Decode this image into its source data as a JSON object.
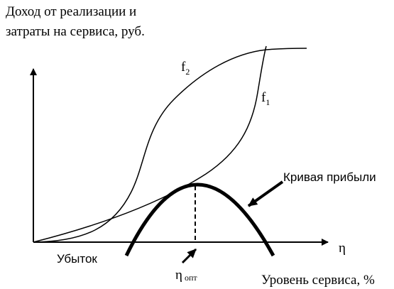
{
  "y_axis_label": [
    "Доход от реализации и",
    "затраты на сервиса, руб."
  ],
  "curves": {
    "f2": {
      "base": "f",
      "sub": "2"
    },
    "f1": {
      "base": "f",
      "sub": "1"
    },
    "profit": "Кривая прибыли"
  },
  "loss_label": "Убыток",
  "x_axis_symbol": "η",
  "optimum": {
    "base": "η",
    "sub": "опт"
  },
  "x_axis_label": "Уровень сервиса, %"
}
